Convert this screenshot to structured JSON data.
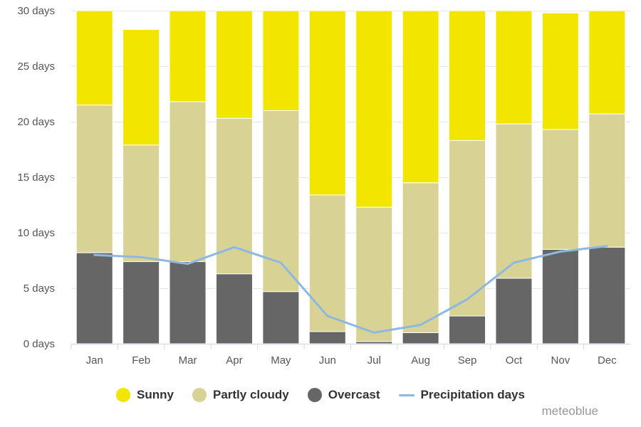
{
  "chart_data": {
    "type": "bar",
    "stacked": true,
    "categories": [
      "Jan",
      "Feb",
      "Mar",
      "Apr",
      "May",
      "Jun",
      "Jul",
      "Aug",
      "Sep",
      "Oct",
      "Nov",
      "Dec"
    ],
    "series": [
      {
        "name": "Overcast",
        "color": "#666666",
        "values": [
          8.2,
          7.4,
          7.4,
          6.3,
          4.7,
          1.1,
          0.2,
          1.0,
          2.5,
          5.9,
          8.5,
          8.7
        ]
      },
      {
        "name": "Partly cloudy",
        "color": "#d8d395",
        "values": [
          13.3,
          10.5,
          14.4,
          14.0,
          16.3,
          12.3,
          12.1,
          13.5,
          15.8,
          13.9,
          10.8,
          12.0
        ]
      },
      {
        "name": "Sunny",
        "color": "#f2e600",
        "values": [
          9.5,
          10.4,
          9.2,
          9.7,
          10.0,
          16.6,
          18.7,
          16.5,
          11.7,
          11.2,
          10.5,
          10.3
        ]
      }
    ],
    "line_series": {
      "name": "Precipitation days",
      "color": "#8db8e2",
      "values": [
        8.0,
        7.8,
        7.2,
        8.7,
        7.3,
        2.5,
        1.0,
        1.7,
        4.0,
        7.3,
        8.3,
        8.8
      ]
    },
    "y_ticks": [
      "0 days",
      "5 days",
      "10 days",
      "15 days",
      "20 days",
      "25 days",
      "30 days"
    ],
    "ylim": [
      0,
      30
    ],
    "grid": true,
    "legend_position": "bottom"
  },
  "legend": {
    "sunny": "Sunny",
    "partly": "Partly cloudy",
    "overcast": "Overcast",
    "precip": "Precipitation days"
  },
  "credit": "meteoblue"
}
